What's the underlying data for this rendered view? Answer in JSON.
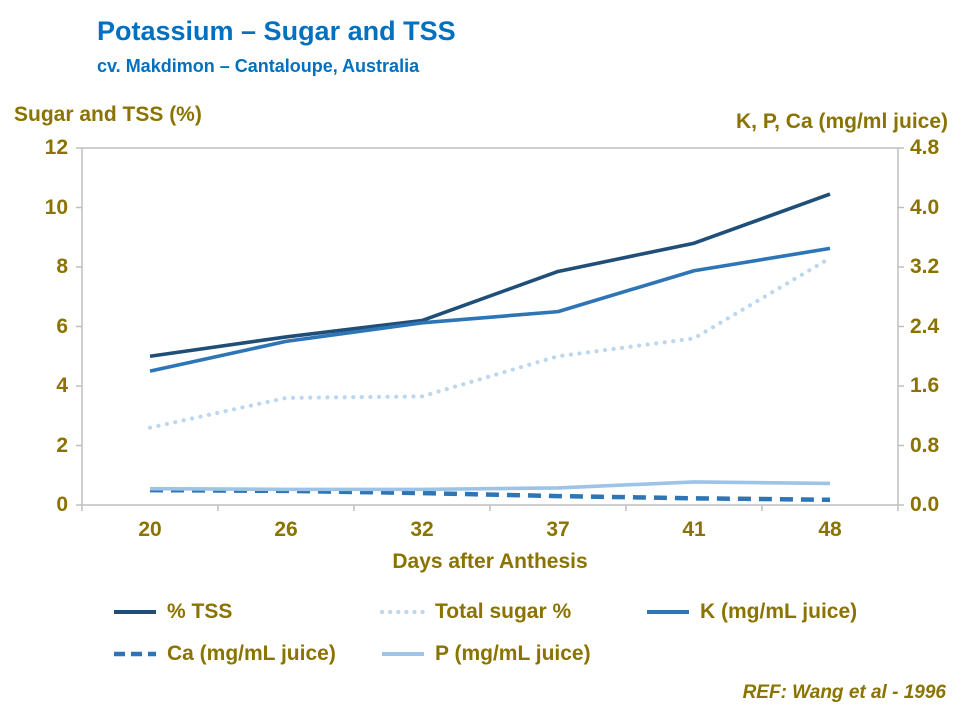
{
  "header": {
    "title": "Potassium – Sugar and TSS",
    "subtitle": "cv. Makdimon – Cantaloupe, Australia"
  },
  "chart": {
    "left_axis_title": "Sugar and TSS (%)",
    "right_axis_title": "K, P, Ca (mg/ml juice)",
    "x_axis_title": "Days after Anthesis"
  },
  "footer": {
    "ref": "REF: Wang et al - 1996"
  },
  "colors": {
    "title_blue": "#0070C0",
    "axis_gold": "#8A7300",
    "plot_border": "#BFBFBF",
    "tss_navy": "#1F4E79",
    "k_blue": "#2E75B6",
    "ca_blue": "#2E75B6",
    "p_light_blue": "#9DC3E6",
    "sugar_pale_blue": "#BDD7EE"
  },
  "chart_data": {
    "type": "line",
    "title": "Potassium – Sugar and TSS",
    "subtitle": "cv. Makdimon – Cantaloupe, Australia",
    "categories": [
      "20",
      "26",
      "32",
      "37",
      "41",
      "48"
    ],
    "xlabel": "Days after Anthesis",
    "grid": false,
    "legend_position": "bottom",
    "left_axis": {
      "title": "Sugar and TSS (%)",
      "min": 0,
      "max": 12,
      "ticks": [
        "12",
        "10",
        "8",
        "6",
        "4",
        "2",
        "0"
      ]
    },
    "right_axis": {
      "title": "K, P, Ca (mg/ml juice)",
      "min": 0.0,
      "max": 4.8,
      "ticks": [
        "4.8",
        "4.0",
        "3.2",
        "2.4",
        "1.6",
        "0.8",
        "0.0"
      ]
    },
    "series": [
      {
        "name": "% TSS",
        "axis": "left",
        "style": "solid",
        "color": "#1F4E79",
        "values": [
          5.0,
          5.65,
          6.2,
          7.85,
          8.8,
          10.45
        ]
      },
      {
        "name": "Total sugar %",
        "axis": "left",
        "style": "dotted",
        "color": "#BDD7EE",
        "values": [
          2.6,
          3.6,
          3.65,
          5.0,
          5.6,
          8.3
        ]
      },
      {
        "name": "K (mg/mL juice)",
        "axis": "right",
        "style": "solid",
        "color": "#2E75B6",
        "values": [
          1.8,
          2.2,
          2.45,
          2.6,
          3.15,
          3.45
        ]
      },
      {
        "name": "Ca (mg/mL juice)",
        "axis": "right",
        "style": "dashed",
        "color": "#2E75B6",
        "values": [
          0.2,
          0.19,
          0.16,
          0.12,
          0.09,
          0.07
        ]
      },
      {
        "name": "P (mg/mL juice)",
        "axis": "right",
        "style": "solid",
        "color": "#9DC3E6",
        "values": [
          0.22,
          0.21,
          0.21,
          0.23,
          0.31,
          0.29
        ]
      }
    ]
  }
}
